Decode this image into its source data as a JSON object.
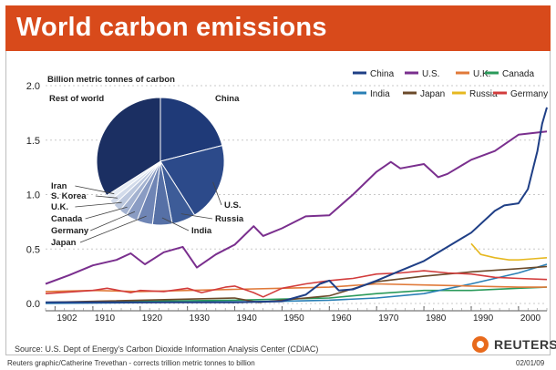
{
  "title": "World carbon emissions",
  "source": "Source: U.S. Dept of Energy's Carbon Dioxide Information Analysis Center (CDIAC)",
  "footer_credit": "Reuters graphic/Catherine Trevethan - corrects trillion metric tonnes to billion",
  "footer_date": "02/01/09",
  "brand": "REUTERS",
  "colors": {
    "title_bar": "#d84a1b",
    "China": "#1f3f86",
    "U.S.": "#7a2f8e",
    "U.K.": "#e07a3a",
    "Canada": "#2a9a5a",
    "India": "#2a7fb5",
    "Japan": "#6b4a2a",
    "Russia": "#e6b820",
    "Germany": "#d23c3c"
  },
  "chart_data": [
    {
      "type": "line",
      "ylabel": "Billion metric tonnes of carbon",
      "ylim": [
        0,
        2.0
      ],
      "xlim": [
        1900,
        2006
      ],
      "y_ticks": [
        "0.0",
        "0.5",
        "1.0",
        "1.5",
        "2.0"
      ],
      "x_ticks": [
        "1902",
        "1910",
        "1920",
        "1930",
        "1940",
        "1950",
        "1960",
        "1970",
        "1980",
        "1990",
        "2000"
      ],
      "grid": true,
      "legend_placement": "top-right",
      "series": [
        {
          "name": "China",
          "x": [
            1900,
            1940,
            1950,
            1955,
            1958,
            1960,
            1962,
            1965,
            1970,
            1975,
            1980,
            1985,
            1990,
            1995,
            1997,
            2000,
            2002,
            2004,
            2005,
            2006
          ],
          "y": [
            0.01,
            0.01,
            0.02,
            0.08,
            0.18,
            0.21,
            0.12,
            0.13,
            0.21,
            0.3,
            0.39,
            0.52,
            0.65,
            0.85,
            0.9,
            0.92,
            1.05,
            1.4,
            1.65,
            1.8
          ]
        },
        {
          "name": "U.S.",
          "x": [
            1900,
            1905,
            1910,
            1915,
            1918,
            1921,
            1925,
            1929,
            1932,
            1936,
            1940,
            1944,
            1946,
            1950,
            1955,
            1960,
            1965,
            1970,
            1973,
            1975,
            1980,
            1983,
            1985,
            1990,
            1995,
            2000,
            2006
          ],
          "y": [
            0.18,
            0.26,
            0.35,
            0.4,
            0.46,
            0.36,
            0.47,
            0.52,
            0.33,
            0.45,
            0.54,
            0.71,
            0.62,
            0.69,
            0.8,
            0.81,
            1.0,
            1.21,
            1.3,
            1.24,
            1.28,
            1.16,
            1.19,
            1.32,
            1.4,
            1.55,
            1.58
          ]
        },
        {
          "name": "U.K.",
          "x": [
            1900,
            1910,
            1920,
            1930,
            1940,
            1950,
            1960,
            1970,
            1980,
            1990,
            2000,
            2006
          ],
          "y": [
            0.11,
            0.12,
            0.11,
            0.12,
            0.13,
            0.14,
            0.15,
            0.18,
            0.17,
            0.16,
            0.15,
            0.15
          ]
        },
        {
          "name": "Canada",
          "x": [
            1900,
            1940,
            1950,
            1960,
            1970,
            1980,
            1990,
            2000,
            2006
          ],
          "y": [
            0.01,
            0.03,
            0.04,
            0.05,
            0.09,
            0.12,
            0.12,
            0.14,
            0.15
          ]
        },
        {
          "name": "India",
          "x": [
            1900,
            1950,
            1960,
            1970,
            1980,
            1990,
            2000,
            2006
          ],
          "y": [
            0.0,
            0.02,
            0.03,
            0.05,
            0.09,
            0.18,
            0.28,
            0.36
          ]
        },
        {
          "name": "Japan",
          "x": [
            1900,
            1940,
            1945,
            1950,
            1960,
            1970,
            1980,
            1990,
            2000,
            2006
          ],
          "y": [
            0.01,
            0.05,
            0.01,
            0.03,
            0.07,
            0.2,
            0.25,
            0.29,
            0.32,
            0.34
          ]
        },
        {
          "name": "Russia",
          "x": [
            1990,
            1992,
            1995,
            1998,
            2000,
            2003,
            2006
          ],
          "y": [
            0.55,
            0.45,
            0.42,
            0.4,
            0.4,
            0.41,
            0.42
          ]
        },
        {
          "name": "Germany",
          "x": [
            1900,
            1910,
            1913,
            1918,
            1920,
            1925,
            1930,
            1933,
            1938,
            1940,
            1944,
            1946,
            1950,
            1955,
            1960,
            1965,
            1970,
            1975,
            1980,
            1985,
            1990,
            1995,
            2000,
            2006
          ],
          "y": [
            0.09,
            0.12,
            0.14,
            0.1,
            0.12,
            0.11,
            0.14,
            0.1,
            0.15,
            0.16,
            0.1,
            0.06,
            0.14,
            0.18,
            0.21,
            0.23,
            0.27,
            0.28,
            0.3,
            0.28,
            0.27,
            0.24,
            0.23,
            0.22
          ]
        }
      ]
    },
    {
      "type": "pie",
      "categories": [
        "China",
        "U.S.",
        "Russia",
        "India",
        "Japan",
        "Germany",
        "Canada",
        "U.K.",
        "S. Korea",
        "Iran",
        "Rest of world"
      ],
      "values": [
        21,
        20,
        6,
        5,
        4,
        3,
        2,
        2,
        1.5,
        1.5,
        34
      ]
    }
  ]
}
